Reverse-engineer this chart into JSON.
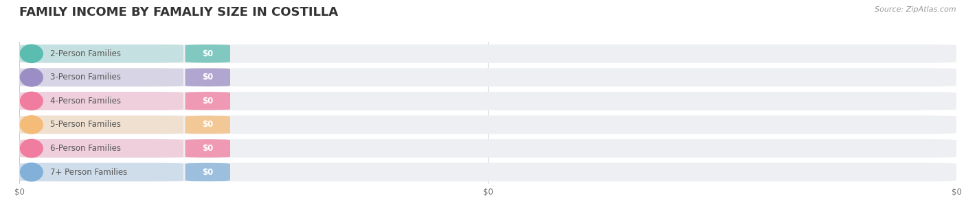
{
  "title": "FAMILY INCOME BY FAMALIY SIZE IN COSTILLA",
  "source": "Source: ZipAtlas.com",
  "categories": [
    "2-Person Families",
    "3-Person Families",
    "4-Person Families",
    "5-Person Families",
    "6-Person Families",
    "7+ Person Families"
  ],
  "values": [
    0,
    0,
    0,
    0,
    0,
    0
  ],
  "bar_colors": [
    "#5bbcb0",
    "#9b8ec4",
    "#f07ca0",
    "#f5bb78",
    "#f07ca0",
    "#82b0d8"
  ],
  "background_color": "#ffffff",
  "bar_bg_color": "#eeeff3",
  "title_fontsize": 13,
  "label_fontsize": 8.5,
  "tick_fontsize": 8.5,
  "source_fontsize": 8,
  "xtick_labels": [
    "$0",
    "$0",
    "$0"
  ]
}
